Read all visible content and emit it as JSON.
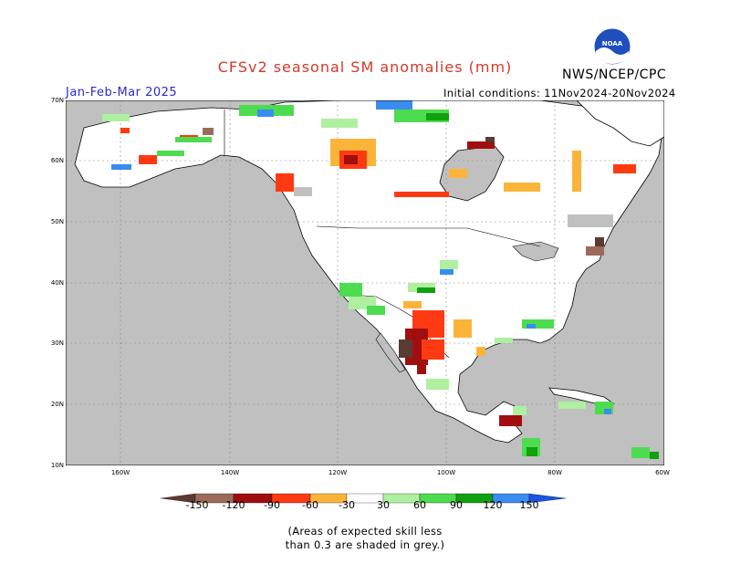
{
  "header": {
    "title": "CFSv2 seasonal SM anomalies (mm)",
    "season": "Jan-Feb-Mar 2025",
    "initial_conditions": "Initial conditions: 11Nov2024-20Nov2024",
    "agency": "NWS/NCEP/CPC",
    "logo_text": "NOAA"
  },
  "axes": {
    "lat_labels": [
      "70N",
      "60N",
      "50N",
      "40N",
      "30N",
      "20N",
      "10N"
    ],
    "lon_labels": [
      "160W",
      "140W",
      "120W",
      "100W",
      "80W",
      "60W"
    ]
  },
  "legend": {
    "ticks": [
      "-150",
      "-120",
      "-90",
      "-60",
      "-30",
      "30",
      "60",
      "90",
      "120",
      "150"
    ],
    "colors": {
      "lt_minus150": "#5a3a32",
      "minus150_120": "#9c6a5a",
      "minus120_90": "#a10e0e",
      "minus90_60": "#ff3a12",
      "minus60_30": "#fbb43a",
      "neutral": "#ffffff",
      "plus30_60": "#aef0a0",
      "plus60_90": "#4ddc4f",
      "plus90_120": "#10a010",
      "plus120_150": "#3a8cf0",
      "gt150": "#1c55e0",
      "low_skill": "#c0c0c0"
    }
  },
  "footnote": {
    "line1": "(Areas of expected skill less",
    "line2": "than 0.3 are shaded in grey.)"
  }
}
